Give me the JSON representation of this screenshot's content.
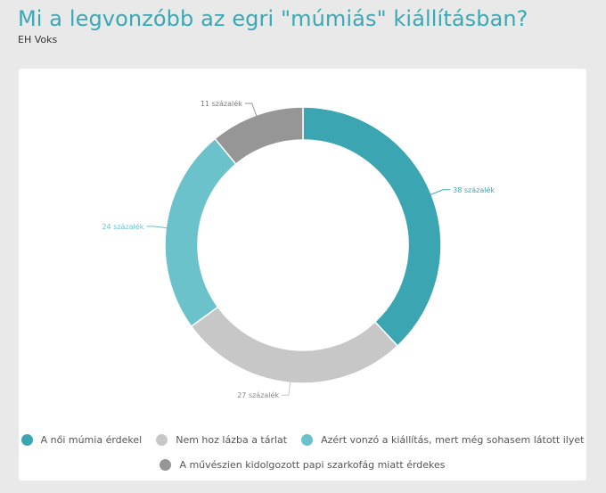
{
  "header": {
    "title": "Mi a legvonzóbb az egri \"múmiás\" kiállításban?",
    "subtitle": "EH Voks"
  },
  "colors": {
    "teal": "#3ba6b2",
    "light_gray": "#c7c7c7",
    "light_teal": "#6cc2cb",
    "dark_gray": "#969696"
  },
  "chart_data": {
    "type": "pie",
    "style": "donut",
    "unit": "százalék",
    "slices": [
      {
        "name": "A női múmia érdekel",
        "value": 38,
        "label": "38 százalék",
        "color": "#3ba6b2"
      },
      {
        "name": "Nem hoz lázba a tárlat",
        "value": 27,
        "label": "27 százalék",
        "color": "#c7c7c7"
      },
      {
        "name": "Azért vonzó a kiállítás, mert még sohasem látott ilyet",
        "value": 24,
        "label": "24 százalék",
        "color": "#6cc2cb"
      },
      {
        "name": "A művészien kidolgozott papi szarkofág miatt érdekes",
        "value": 11,
        "label": "11 százalék",
        "color": "#969696"
      }
    ],
    "legend_position": "bottom"
  }
}
